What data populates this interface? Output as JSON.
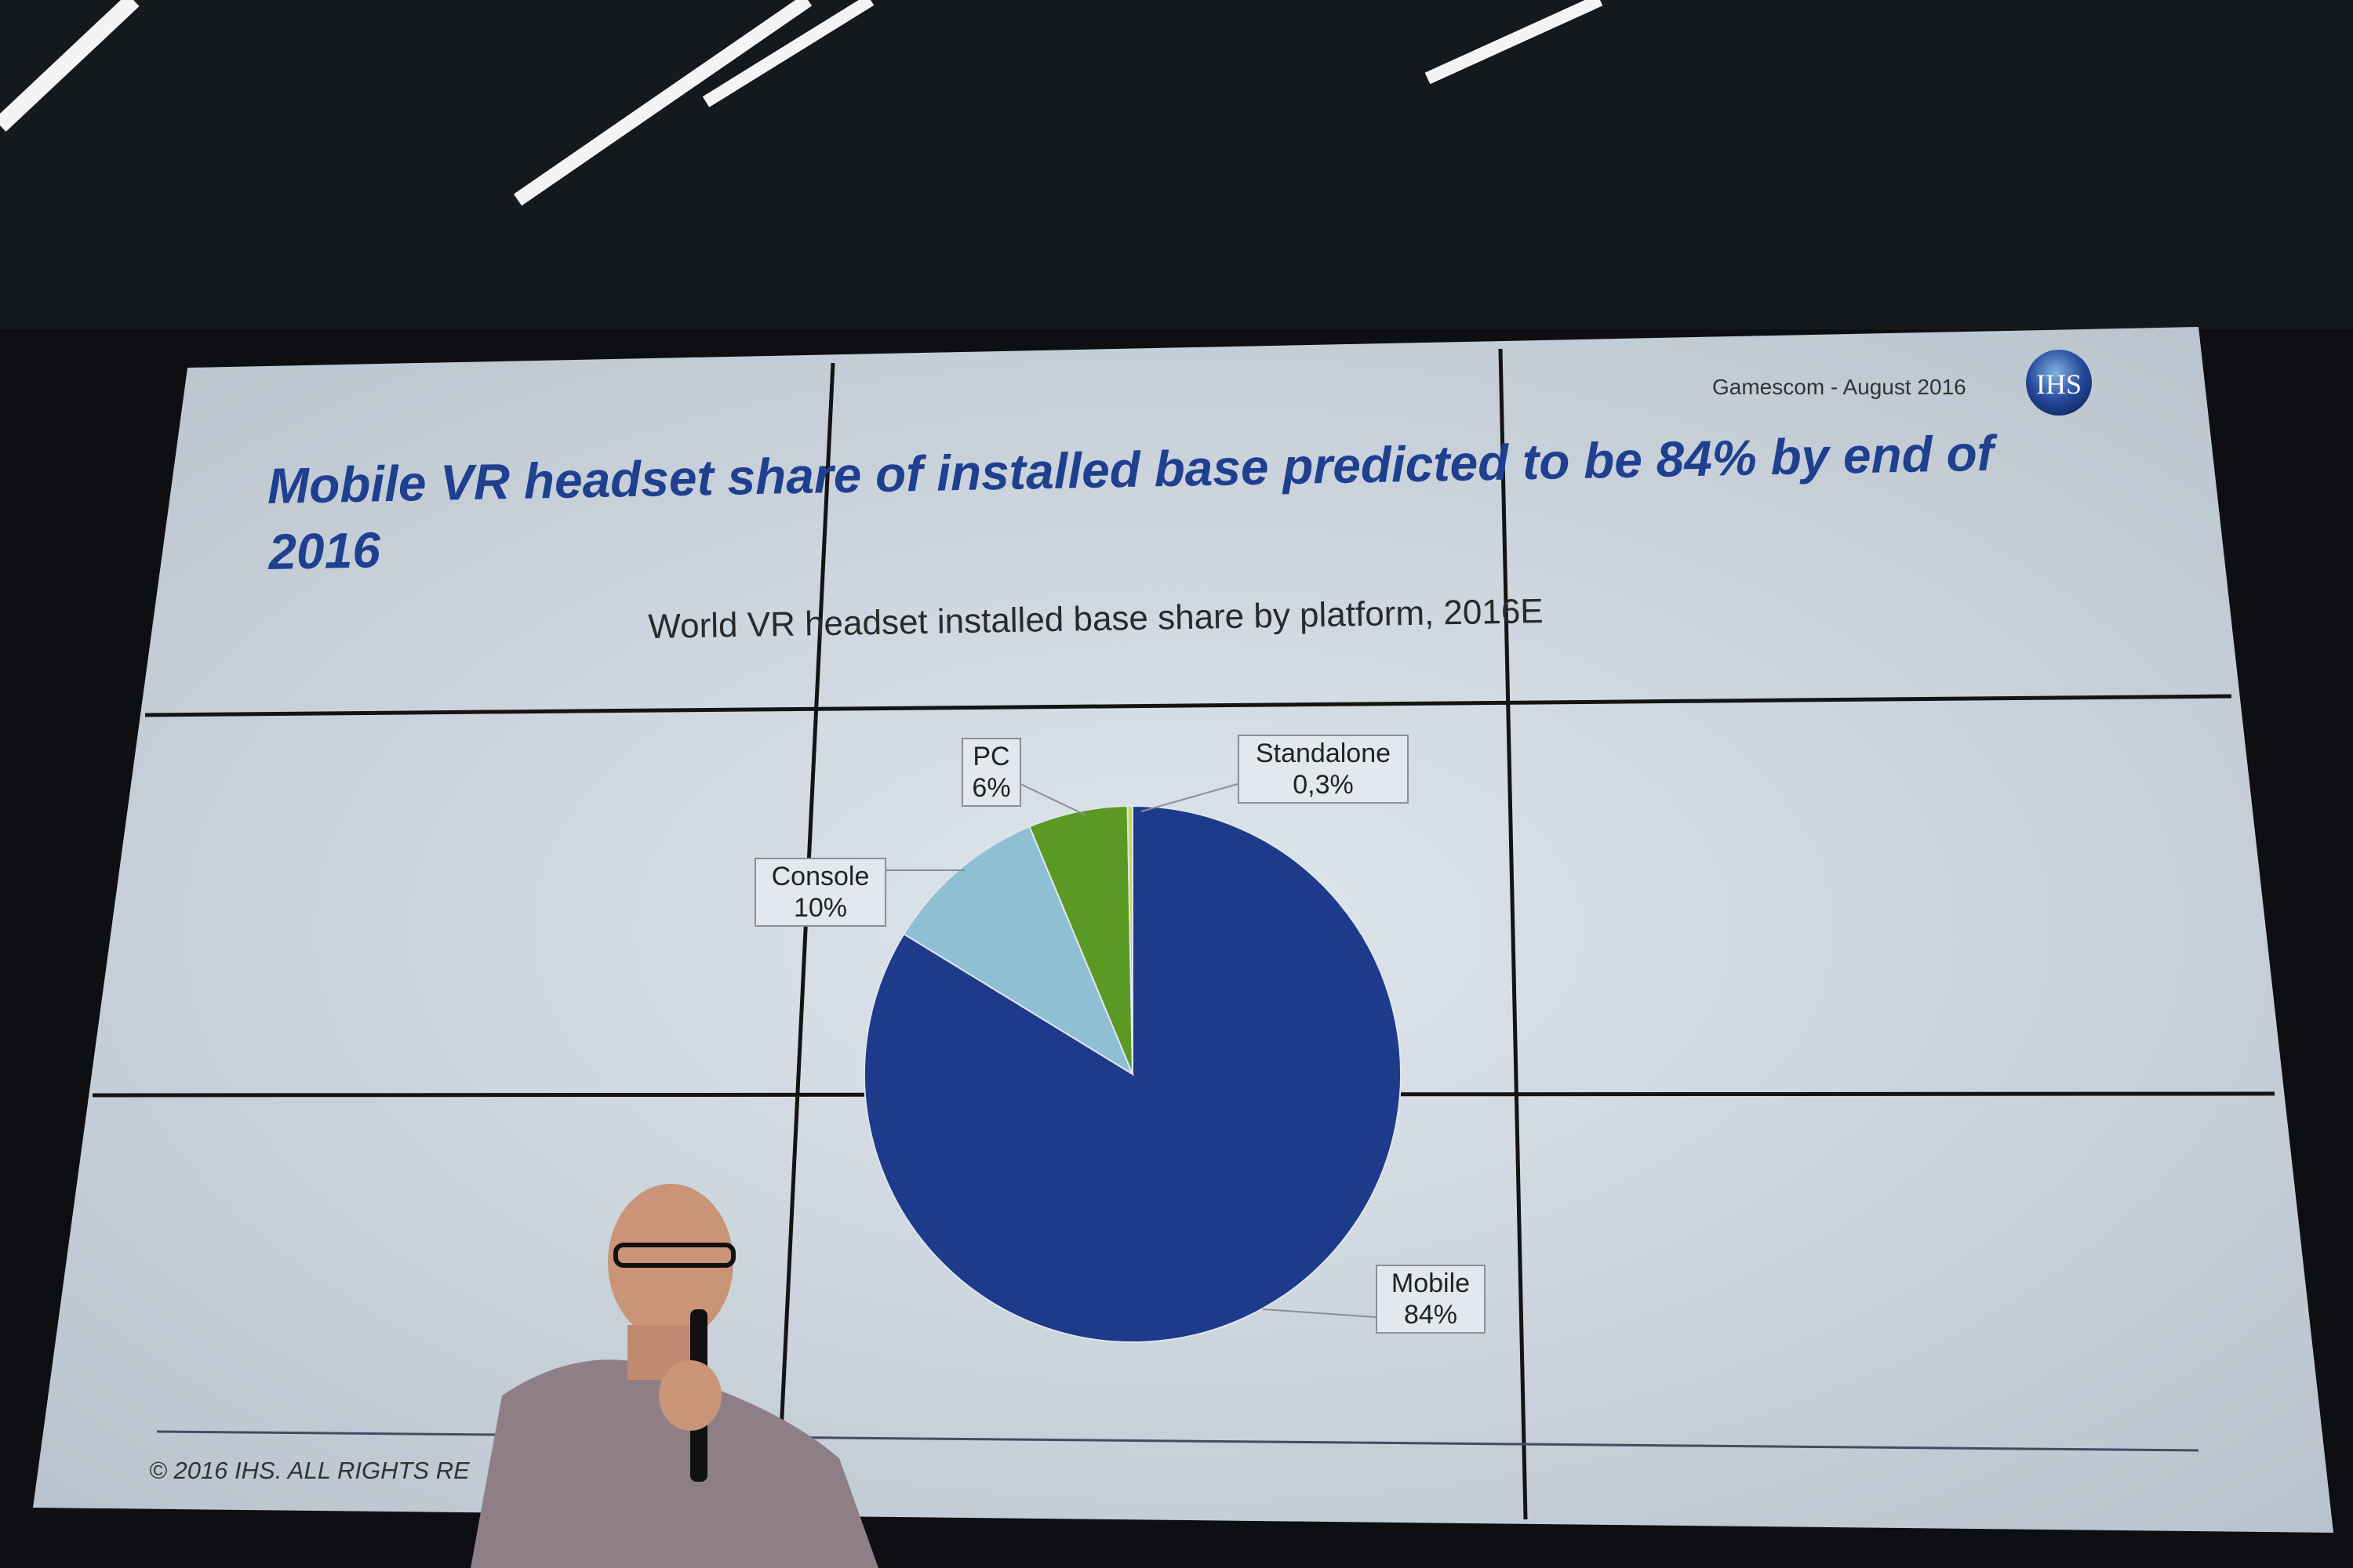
{
  "slide": {
    "title": "Mobile VR headset share of installed base predicted to be 84% by end of 2016",
    "event": "Gamescom - August 2016",
    "logo_text": "IHS",
    "footer": "© 2016 IHS. ALL RIGHTS RE"
  },
  "chart_data": {
    "type": "pie",
    "title": "World VR headset installed base share by platform, 2016E",
    "categories": [
      "Mobile",
      "Console",
      "PC",
      "Standalone"
    ],
    "values": [
      84,
      10,
      6,
      0.3
    ],
    "value_labels": [
      "84%",
      "10%",
      "6%",
      "0,3%"
    ],
    "colors": [
      "#1e3a8a",
      "#8fbfd4",
      "#5a9a24",
      "#c9d84a"
    ],
    "start": "top",
    "direction": "clockwise"
  }
}
